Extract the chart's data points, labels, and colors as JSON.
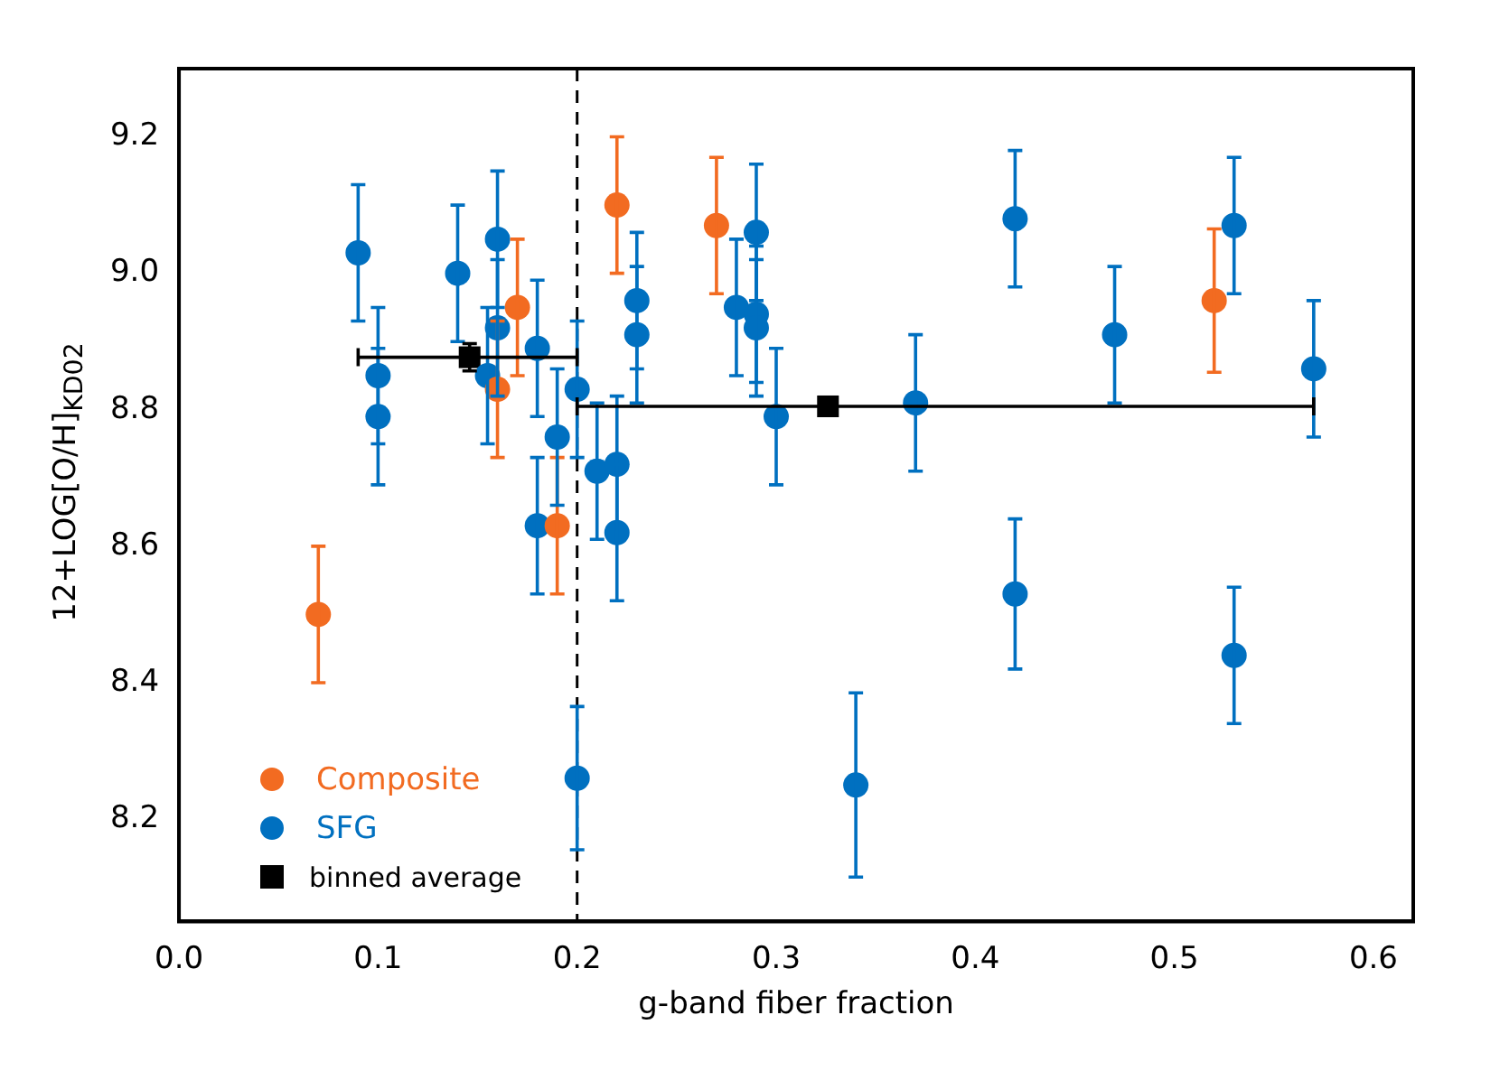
{
  "chart_data": {
    "type": "scatter",
    "xlabel": "g-band fiber fraction",
    "ylabel": "12+LOG[O/H]$_{KD02}$",
    "xlim": [
      0,
      0.62
    ],
    "xticks": [
      {
        "value": 0,
        "label": "0.0"
      },
      0.1,
      0.2,
      0.3,
      0.4,
      0.5,
      0.6
    ],
    "ylim": [
      8.05,
      9.3
    ],
    "yticks": [
      8.2,
      8.4,
      8.6,
      {
        "value": 8.8,
        "label": "8.8"
      },
      {
        "value": 9,
        "label": "9.0"
      },
      9.2
    ],
    "grid": false,
    "legend": "bottom left",
    "marker": "circle",
    "ref_lines": [
      {
        "axis": "x",
        "value": 0.2,
        "label": null,
        "color": "#000000",
        "line_style": "dashed"
      }
    ],
    "series": [
      {
        "name": "Composite",
        "color": "#f26b21",
        "x": [
          0.07,
          0.16,
          0.17,
          0.19,
          0.22,
          0.27,
          0.52
        ],
        "values": [
          8.5,
          8.83,
          8.95,
          8.63,
          9.1,
          9.07,
          8.96
        ],
        "errors": [
          0.1,
          0.1,
          0.1,
          0.1,
          0.1,
          0.1,
          0.105
        ]
      },
      {
        "name": "SFG",
        "color": "#0070c0",
        "x": [
          0.09,
          0.1,
          0.1,
          0.14,
          0.155,
          0.16,
          0.16,
          0.18,
          0.18,
          0.19,
          0.2,
          0.2,
          0.21,
          0.22,
          0.22,
          0.23,
          0.23,
          0.28,
          0.29,
          0.29,
          0.29,
          0.3,
          0.34,
          0.37,
          0.42,
          0.42,
          0.47,
          0.53,
          0.53,
          0.57
        ],
        "values": [
          9.03,
          8.85,
          8.79,
          9.0,
          8.85,
          9.05,
          8.92,
          8.89,
          8.63,
          8.76,
          8.83,
          8.26,
          8.71,
          8.72,
          8.62,
          8.96,
          8.91,
          8.95,
          9.06,
          8.94,
          8.92,
          8.79,
          8.25,
          8.81,
          9.08,
          8.53,
          8.91,
          9.07,
          8.44,
          8.86
        ],
        "errors": [
          0.1,
          0.1,
          0.1,
          0.1,
          0.1,
          0.1,
          0.1,
          0.1,
          0.1,
          0.1,
          0.1,
          0.105,
          0.1,
          0.1,
          0.1,
          0.1,
          0.1,
          0.1,
          0.1,
          0.1,
          0.1,
          0.1,
          0.135,
          0.1,
          0.1,
          0.11,
          0.1,
          0.1,
          0.1,
          0.1
        ]
      },
      {
        "name": "binned average",
        "color": "#000000",
        "marker": "square",
        "x": [
          0.146,
          0.326
        ],
        "values": [
          8.877,
          8.805
        ],
        "errors": [
          0.02,
          0.005
        ],
        "xerrors": [
          [
            0.09,
            0.2
          ],
          [
            0.2,
            0.57
          ]
        ]
      }
    ]
  }
}
